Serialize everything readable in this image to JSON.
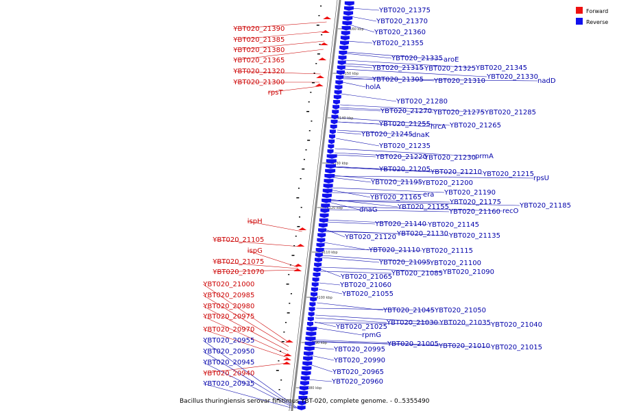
{
  "caption": "Bacillus thuringiensis serovar finitimus YBT-020, complete genome. - 0..5355490",
  "legend": {
    "forward_label": "Forward",
    "reverse_label": "Reverse",
    "forward_color": "#ee1111",
    "reverse_color": "#1111ee"
  },
  "colors": {
    "forward": "#ee1111",
    "forward_text": "#cc0000",
    "reverse": "#1111ee",
    "reverse_text": "#0000aa",
    "axis": "#888888"
  },
  "tick_labels": [
    "4160 kbp",
    "4150 kbp",
    "4140 kbp",
    "4130 kbp",
    "4120 kbp",
    "4110 kbp",
    "4100 kbp",
    "4090 kbp",
    "4080 kbp"
  ],
  "forward_labels": [
    "YBT020_21390",
    "YBT020_21385",
    "YBT020_21380",
    "YBT020_21365",
    "YBT020_21320",
    "YBT020_21300",
    "rpsT",
    "ispH",
    "YBT020_21105",
    "ispG",
    "YBT020_21075",
    "YBT020_21070",
    "YBT020_21000",
    "YBT020_20985",
    "YBT020_20980",
    "YBT020_20975",
    "YBT020_20970",
    "YBT020_20940"
  ],
  "reverse_left_labels": [
    "YBT020_20955",
    "YBT020_20950",
    "YBT020_20945",
    "YBT020_20935"
  ],
  "reverse_labels": [
    "YBT020_21375",
    "YBT020_21370",
    "YBT020_21360",
    "YBT020_21355",
    "YBT020_21335",
    "aroE",
    "YBT020_21315",
    "YBT020_21325",
    "YBT020_21345",
    "YBT020_21305",
    "YBT020_21310",
    "YBT020_21330",
    "nadD",
    "holA",
    "YBT020_21280",
    "YBT020_21270",
    "YBT020_21275",
    "YBT020_21285",
    "YBT020_21255",
    "hrcA",
    "YBT020_21265",
    "YBT020_21245",
    "dnaK",
    "YBT020_21235",
    "YBT020_21220",
    "YBT020_21230",
    "prmA",
    "YBT020_21205",
    "YBT020_21210",
    "YBT020_21215",
    "rpsU",
    "YBT020_21195",
    "YBT020_21200",
    "era",
    "YBT020_21190",
    "YBT020_21165",
    "YBT020_21175",
    "YBT020_21185",
    "YBT020_21155",
    "YBT020_21160",
    "recO",
    "dnaG",
    "YBT020_21140",
    "YBT020_21145",
    "YBT020_21120",
    "YBT020_21130",
    "YBT020_21135",
    "YBT020_21110",
    "YBT020_21115",
    "YBT020_21095",
    "YBT020_21100",
    "YBT020_21085",
    "YBT020_21090",
    "YBT020_21065",
    "YBT020_21060",
    "YBT020_21055",
    "YBT020_21045",
    "YBT020_21050",
    "YBT020_21030",
    "YBT020_21035",
    "YBT020_21040",
    "YBT020_21025",
    "rpmG",
    "YBT020_21005",
    "YBT020_21010",
    "YBT020_21015",
    "YBT020_20995",
    "YBT020_20990",
    "YBT020_20965",
    "YBT020_20960"
  ]
}
